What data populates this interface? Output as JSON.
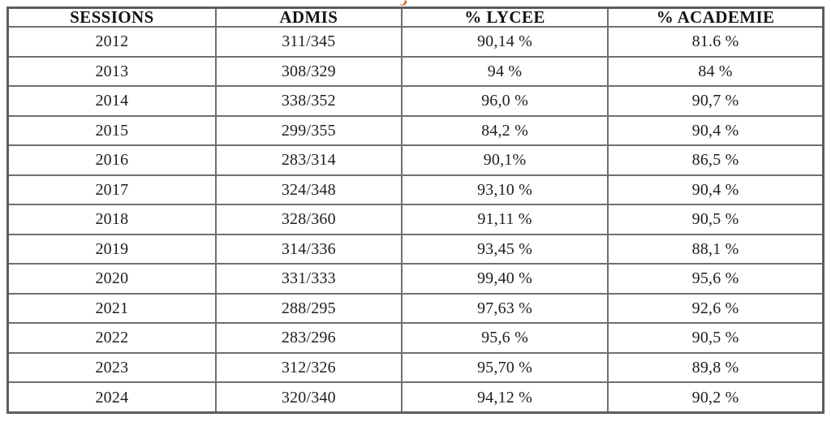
{
  "page": {
    "background": "#ffffff",
    "colors": {
      "table_border": "#6f6f6f",
      "outer_border": "#5d5d5d",
      "text": "#1e1e1e",
      "fragment_accent": "#c8743c"
    }
  },
  "table": {
    "headers": [
      "SESSIONS",
      "ADMIS",
      "% LYCEE",
      "% ACADEMIE"
    ],
    "rows": [
      {
        "session": "2012",
        "admis": "311/345",
        "lycee": "90,14 %",
        "academie": "81.6 %"
      },
      {
        "session": "2013",
        "admis": "308/329",
        "lycee": "94 %",
        "academie": "84 %"
      },
      {
        "session": "2014",
        "admis": "338/352",
        "lycee": "96,0 %",
        "academie": "90,7 %"
      },
      {
        "session": "2015",
        "admis": "299/355",
        "lycee": "84,2 %",
        "academie": "90,4 %"
      },
      {
        "session": "2016",
        "admis": "283/314",
        "lycee": "90,1%",
        "academie": "86,5 %"
      },
      {
        "session": "2017",
        "admis": "324/348",
        "lycee": "93,10 %",
        "academie": "90,4 %"
      },
      {
        "session": "2018",
        "admis": "328/360",
        "lycee": "91,11 %",
        "academie": "90,5 %"
      },
      {
        "session": "2019",
        "admis": "314/336",
        "lycee": "93,45 %",
        "academie": "88,1 %"
      },
      {
        "session": "2020",
        "admis": "331/333",
        "lycee": "99,40 %",
        "academie": "95,6 %"
      },
      {
        "session": "2021",
        "admis": "288/295",
        "lycee": "97,63 %",
        "academie": "92,6 %"
      },
      {
        "session": "2022",
        "admis": "283/296",
        "lycee": "95,6 %",
        "academie": "90,5 %"
      },
      {
        "session": "2023",
        "admis": "312/326",
        "lycee": "95,70 %",
        "academie": "89,8 %"
      },
      {
        "session": "2024",
        "admis": "320/340",
        "lycee": "94,12 %",
        "academie": "90,2 %"
      }
    ]
  }
}
